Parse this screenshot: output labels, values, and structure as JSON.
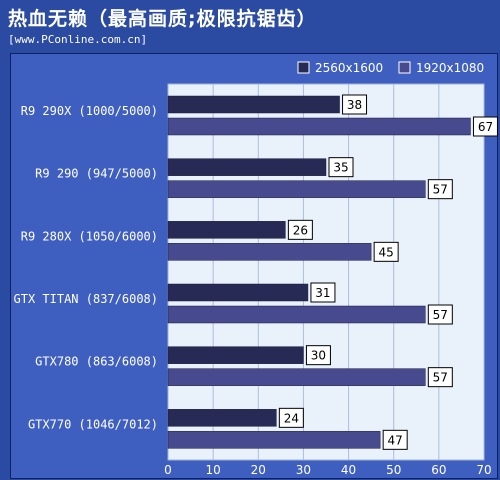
{
  "header": {
    "title": "热血无赖（最高画质;极限抗锯齿）",
    "source": "[www.PConline.com.cn]"
  },
  "colors": {
    "background": "#2b4aa2",
    "panel": "#3f5fc0",
    "plot_area": "#e9f2fb",
    "series_dark": "#272a55",
    "series_light": "#474a8e"
  },
  "chart_data": {
    "type": "bar",
    "orientation": "horizontal",
    "title": "热血无赖（最高画质;极限抗锯齿）",
    "categories": [
      "R9 290X (1000/5000)",
      "R9 290 (947/5000)",
      "R9 280X (1050/6000)",
      "GTX TITAN (837/6008)",
      "GTX780 (863/6008)",
      "GTX770 (1046/7012)"
    ],
    "series": [
      {
        "name": "2560x1600",
        "color": "#272a55",
        "values": [
          38,
          35,
          26,
          31,
          30,
          24
        ]
      },
      {
        "name": "1920x1080",
        "color": "#474a8e",
        "values": [
          67,
          57,
          45,
          57,
          57,
          47
        ]
      }
    ],
    "xlim": [
      0,
      70
    ],
    "xticks": [
      0,
      10,
      20,
      30,
      40,
      50,
      60,
      70
    ],
    "grid": true,
    "legend_position": "top-right"
  }
}
